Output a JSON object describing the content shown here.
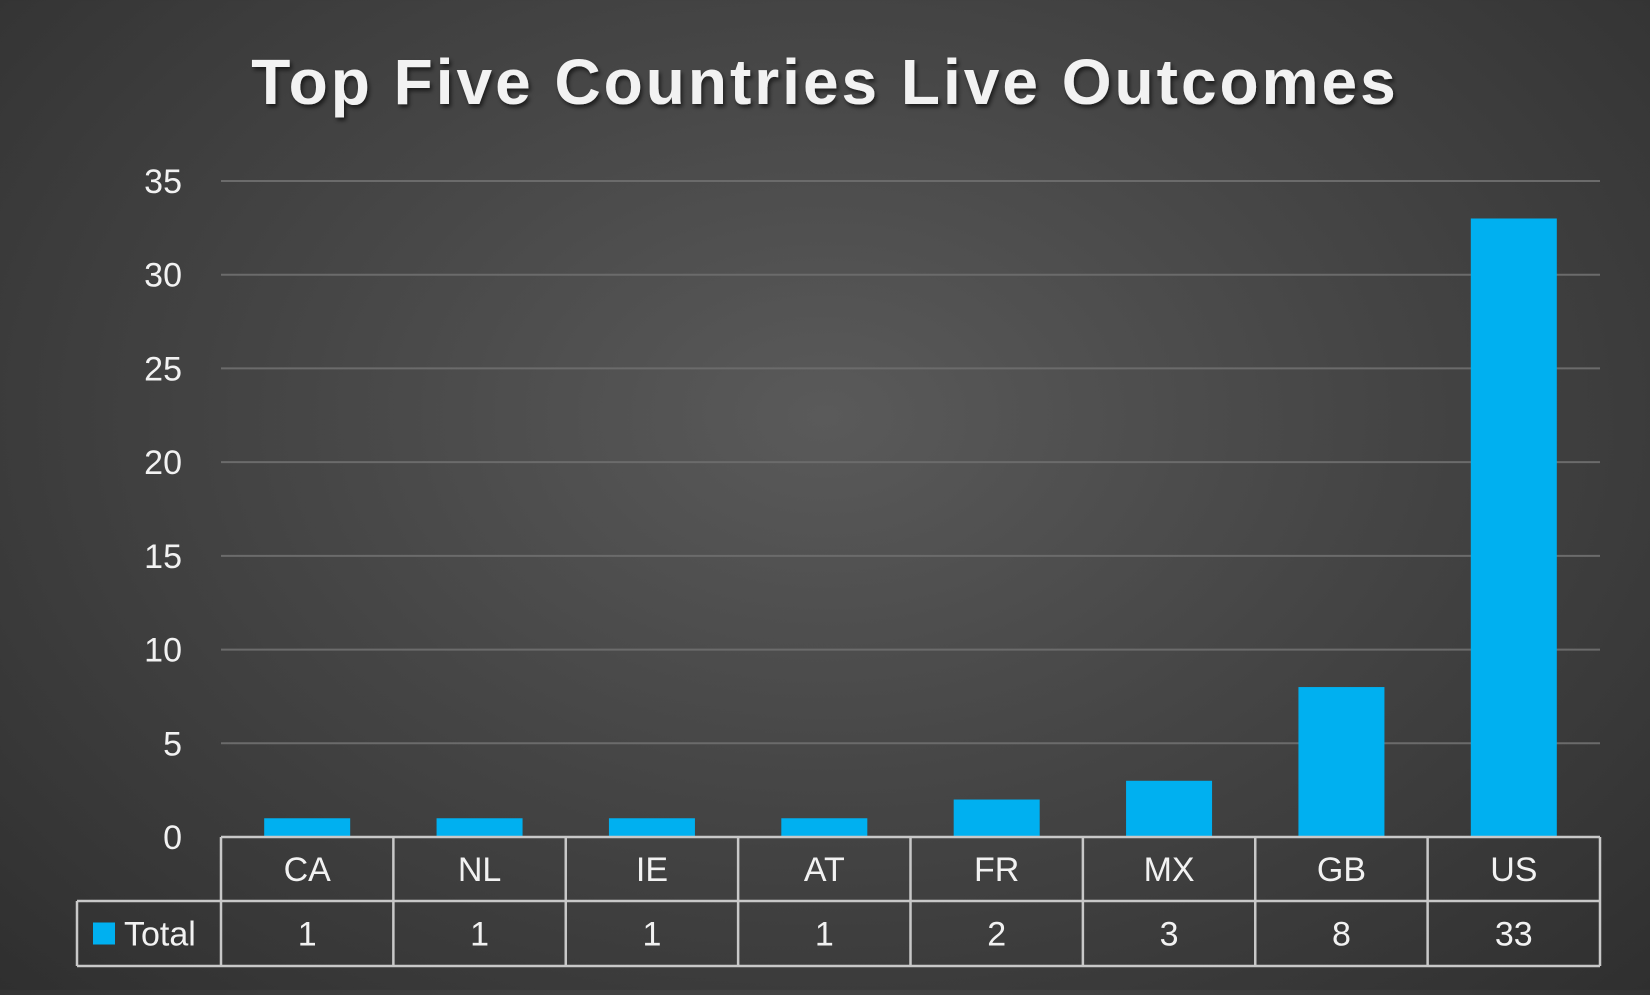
{
  "chart_data": {
    "type": "bar",
    "title": "Top Five Countries Live Outcomes",
    "xlabel": "",
    "ylabel": "",
    "ylim": [
      0,
      35
    ],
    "yticks": [
      0,
      5,
      10,
      15,
      20,
      25,
      30,
      35
    ],
    "grid": true,
    "categories": [
      "CA",
      "NL",
      "IE",
      "AT",
      "FR",
      "MX",
      "GB",
      "US"
    ],
    "series": [
      {
        "name": "Total",
        "values": [
          1,
          1,
          1,
          1,
          2,
          3,
          8,
          33
        ],
        "color": "#00b0f0"
      }
    ],
    "data_table": true
  },
  "colors": {
    "text": "#f2f2f2",
    "gridline": "#6b6b6b",
    "table_border": "#c8c8c8",
    "bar": "#00b0f0"
  }
}
